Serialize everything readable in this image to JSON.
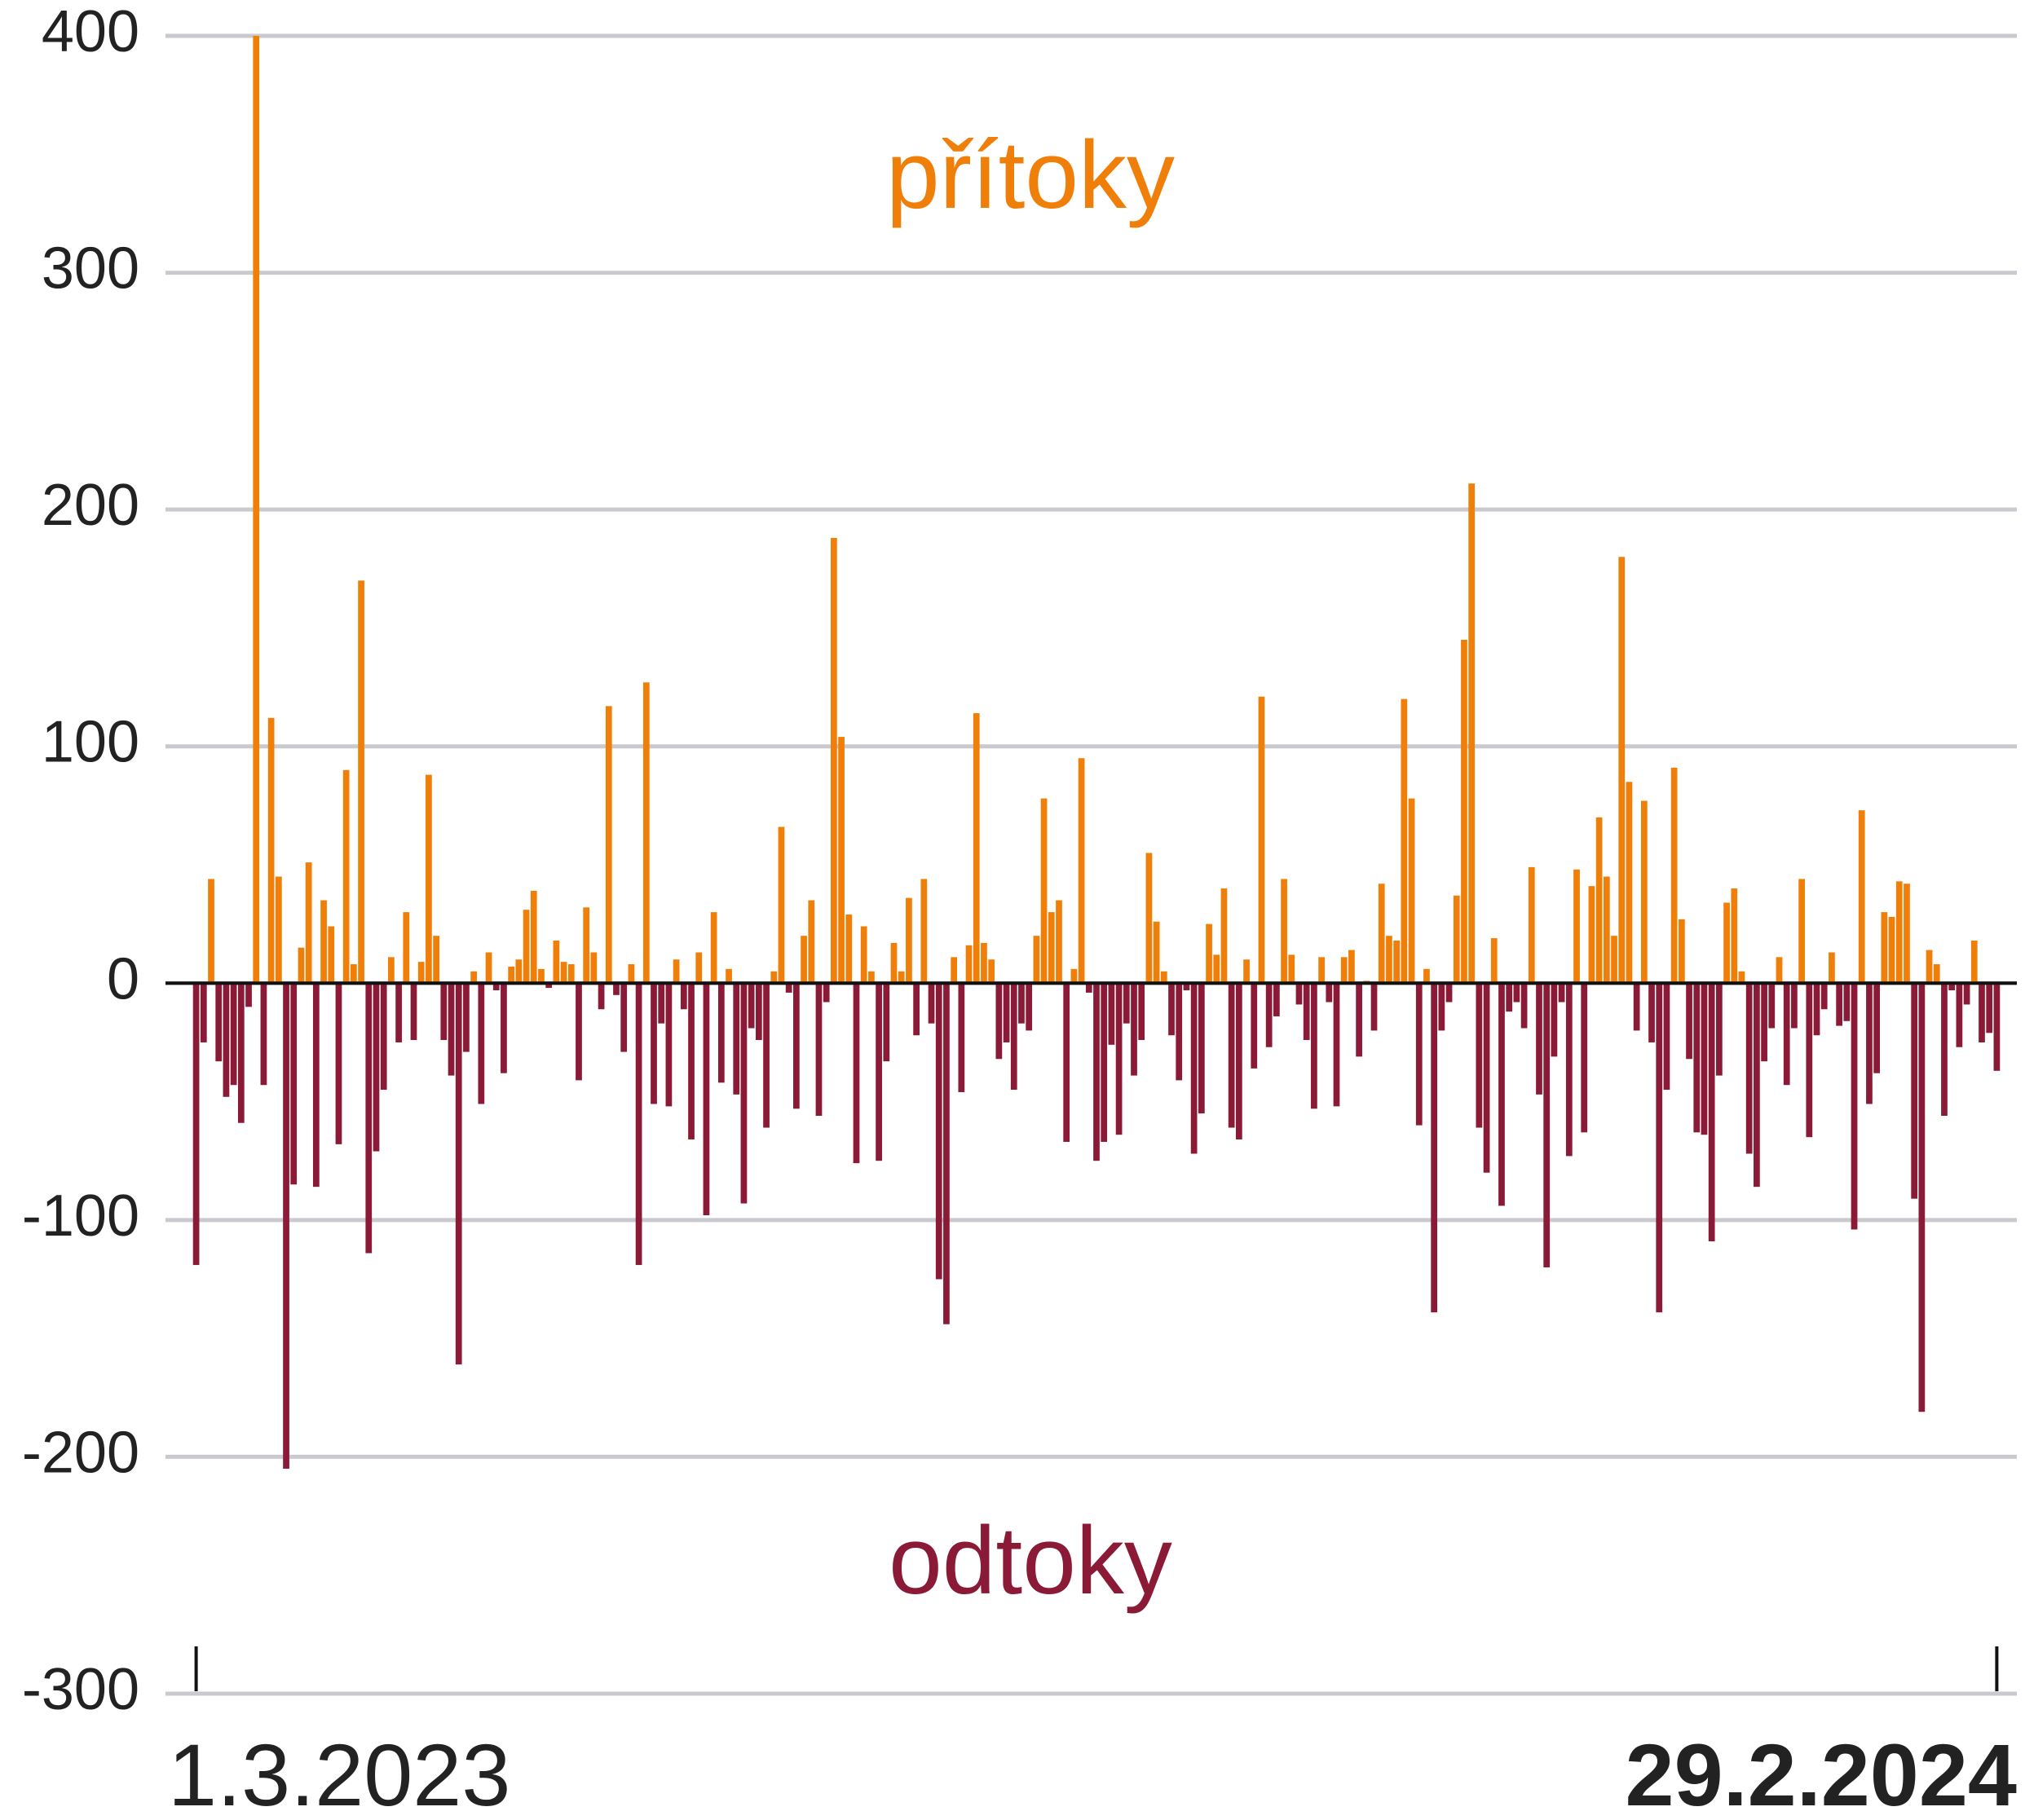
{
  "chart_data": {
    "type": "bar",
    "positive_label": "přítoky",
    "negative_label": "odtoky",
    "colors": {
      "positive": "#f07f09",
      "negative": "#8b1a37"
    },
    "ylim": [
      -300,
      400
    ],
    "yticks": [
      -300,
      -200,
      -100,
      0,
      100,
      200,
      300,
      400
    ],
    "grid": true,
    "categories": [
      "1.3.2023",
      null,
      null,
      null,
      null,
      null,
      null,
      null,
      null,
      null,
      null,
      null,
      null,
      null,
      null,
      null,
      null,
      null,
      null,
      null,
      null,
      null,
      null,
      null,
      null,
      null,
      null,
      null,
      null,
      null,
      null,
      null,
      null,
      null,
      null,
      null,
      null,
      null,
      null,
      null,
      null,
      null,
      null,
      null,
      null,
      null,
      null,
      null,
      null,
      null,
      null,
      null,
      null,
      null,
      null,
      null,
      null,
      null,
      null,
      null,
      null,
      null,
      null,
      null,
      null,
      null,
      null,
      null,
      null,
      null,
      null,
      null,
      null,
      null,
      null,
      null,
      null,
      null,
      null,
      null,
      null,
      null,
      null,
      null,
      null,
      null,
      null,
      null,
      null,
      null,
      null,
      null,
      null,
      null,
      null,
      null,
      null,
      null,
      null,
      null,
      null,
      null,
      null,
      null,
      null,
      null,
      null,
      null,
      null,
      null,
      null,
      null,
      null,
      null,
      null,
      null,
      null,
      null,
      null,
      null,
      null,
      null,
      null,
      null,
      null,
      null,
      null,
      null,
      null,
      null,
      null,
      null,
      null,
      null,
      null,
      null,
      null,
      null,
      null,
      null,
      null,
      null,
      null,
      null,
      null,
      null,
      null,
      null,
      null,
      null,
      null,
      null,
      null,
      null,
      null,
      null,
      null,
      null,
      null,
      null,
      null,
      null,
      null,
      null,
      null,
      null,
      null,
      null,
      null,
      null,
      null,
      null,
      null,
      null,
      null,
      null,
      null,
      null,
      null,
      null,
      null,
      null,
      null,
      null,
      null,
      null,
      null,
      null,
      null,
      null,
      null,
      null,
      null,
      null,
      null,
      null,
      null,
      null,
      null,
      null,
      null,
      null,
      null,
      null,
      null,
      null,
      null,
      null,
      null,
      null,
      null,
      null,
      null,
      null,
      null,
      null,
      null,
      null,
      null,
      null,
      null,
      null,
      null,
      null,
      null,
      null,
      null,
      null,
      null,
      null,
      null,
      null,
      null,
      null,
      null,
      null,
      null,
      null,
      null,
      null,
      "29.2.2024"
    ],
    "values": [
      -119,
      -25,
      44,
      -33,
      -48,
      -43,
      -59,
      -10,
      400,
      -43,
      112,
      45,
      -205,
      -85,
      15,
      51,
      -86,
      35,
      24,
      -68,
      90,
      8,
      170,
      -114,
      -71,
      -45,
      11,
      -25,
      30,
      -24,
      9,
      88,
      20,
      -24,
      -39,
      -161,
      -29,
      5,
      -51,
      13,
      -3,
      -38,
      7,
      10,
      31,
      39,
      6,
      -2,
      18,
      9,
      8,
      -41,
      32,
      13,
      -11,
      117,
      -5,
      -29,
      8,
      -119,
      127,
      -51,
      -17,
      -52,
      10,
      -11,
      -66,
      13,
      -98,
      30,
      -42,
      6,
      -47,
      -93,
      -19,
      -24,
      -61,
      5,
      66,
      -4,
      -53,
      20,
      35,
      -56,
      -8,
      188,
      104,
      29,
      -76,
      24,
      5,
      -75,
      -33,
      17,
      5,
      36,
      -22,
      44,
      -17,
      -125,
      -144,
      11,
      -46,
      16,
      114,
      17,
      10,
      -32,
      -25,
      -45,
      -17,
      -20,
      20,
      78,
      30,
      35,
      -67,
      6,
      95,
      -4,
      -75,
      -67,
      -26,
      -64,
      -17,
      -39,
      -24,
      55,
      26,
      5,
      -22,
      -41,
      -3,
      -72,
      -55,
      25,
      12,
      40,
      -61,
      -66,
      10,
      -36,
      121,
      -27,
      -14,
      44,
      12,
      -9,
      -24,
      -53,
      11,
      -8,
      -52,
      11,
      14,
      -31,
      1,
      -20,
      42,
      20,
      18,
      120,
      78,
      -60,
      6,
      -139,
      -20,
      -8,
      37,
      145,
      211,
      -61,
      -80,
      19,
      -94,
      -12,
      -8,
      -19,
      49,
      -47,
      -120,
      -31,
      -8,
      -73,
      48,
      -63,
      41,
      70,
      45,
      20,
      180,
      85,
      -20,
      77,
      -25,
      -139,
      -45,
      91,
      27,
      -32,
      -63,
      -64,
      -109,
      -39,
      34,
      40,
      5,
      -72,
      -86,
      -33,
      -19,
      11,
      -43,
      -19,
      44,
      -65,
      -22,
      -11,
      13,
      -18,
      -16,
      -104,
      73,
      -51,
      -38,
      30,
      28,
      43,
      42,
      -91,
      -181,
      14,
      8,
      -56,
      -3,
      -27,
      -9,
      18,
      -25,
      -21,
      -37
    ]
  }
}
